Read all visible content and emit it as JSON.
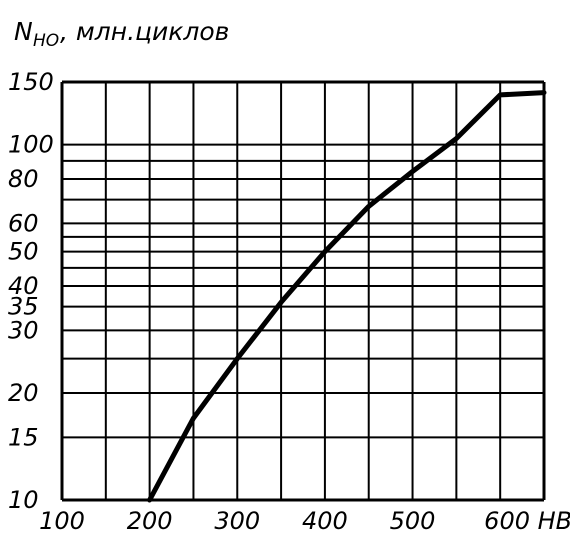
{
  "chart_data": {
    "type": "line",
    "title": {
      "symbol": "N",
      "subscript": "HO",
      "units": ", млн.циклов"
    },
    "xlabel": "HB",
    "ylabel": "N_HO, млн.циклов",
    "xlim": [
      100,
      650
    ],
    "ylim": [
      10,
      150
    ],
    "y_scale": "log",
    "grid": true,
    "x_ticks": [
      100,
      200,
      300,
      400,
      500,
      600
    ],
    "x_tick_labels": [
      "100",
      "200",
      "300",
      "400",
      "500",
      "600 HB"
    ],
    "x_gridlines": [
      100,
      150,
      200,
      250,
      300,
      350,
      400,
      450,
      500,
      550,
      600,
      650
    ],
    "y_ticks": [
      10,
      15,
      20,
      30,
      35,
      40,
      50,
      60,
      80,
      100,
      150
    ],
    "y_tick_labels": [
      "10",
      "15",
      "20",
      "30",
      "35",
      "40",
      "50",
      "60",
      "80",
      "100",
      "150"
    ],
    "y_gridlines": [
      10,
      15,
      20,
      25,
      30,
      35,
      40,
      45,
      50,
      55,
      60,
      70,
      80,
      90,
      100,
      150
    ],
    "series": [
      {
        "name": "N_HO",
        "x": [
          200,
          250,
          300,
          350,
          400,
          450,
          500,
          550,
          600,
          650
        ],
        "y": [
          10,
          17,
          25,
          36,
          50,
          67,
          84,
          104,
          138,
          140
        ]
      }
    ]
  }
}
